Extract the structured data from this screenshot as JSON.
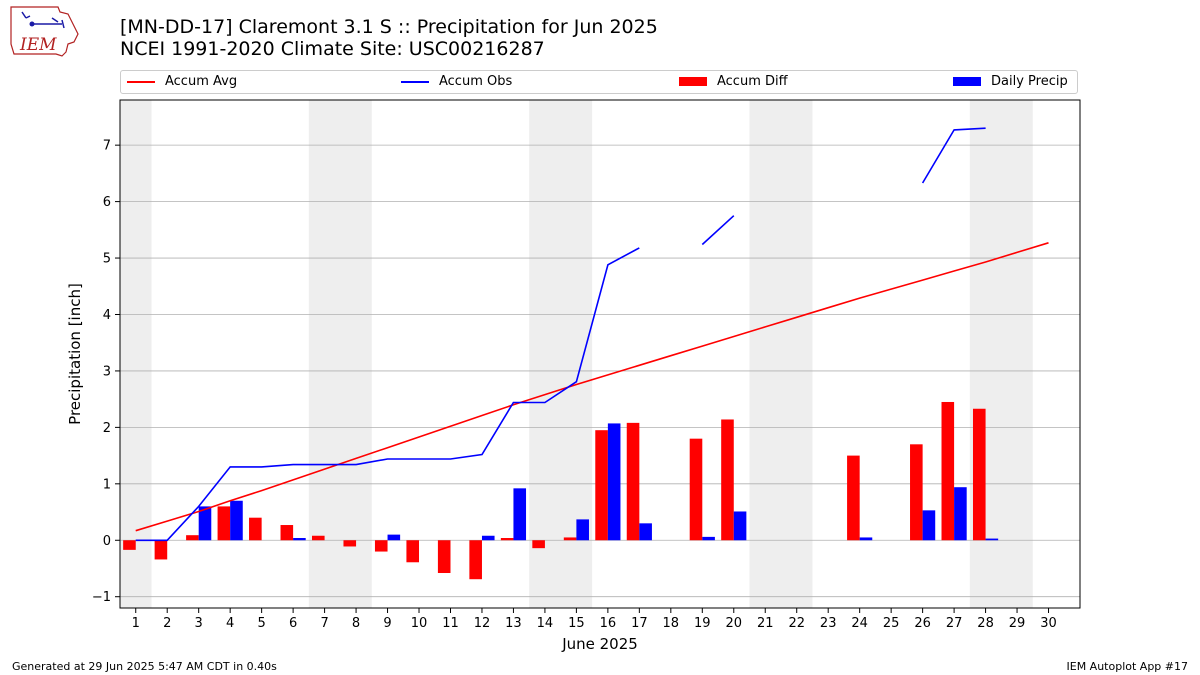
{
  "header": {
    "title_line1": "[MN-DD-17] Claremont 3.1 S :: Precipitation for Jun 2025",
    "title_line2": "NCEI 1991-2020 Climate Site: USC00216287",
    "logo_text": "IEM"
  },
  "footer": {
    "generated": "Generated at 29 Jun 2025 5:47 AM CDT in 0.40s",
    "app": "IEM Autoplot App #17"
  },
  "colors": {
    "avg": "#ff0000",
    "obs": "#0000ff",
    "diff": "#ff0000",
    "daily": "#0000ff",
    "weekend": "#eeeeee",
    "grid": "#b0b0b0"
  },
  "chart_data": {
    "type": "bar",
    "title": "[MN-DD-17] Claremont 3.1 S :: Precipitation for Jun 2025",
    "subtitle": "NCEI 1991-2020 Climate Site: USC00216287",
    "xlabel": "June 2025",
    "ylabel": "Precipitation [inch]",
    "xlim": [
      0.5,
      31
    ],
    "ylim": [
      -1.2,
      7.8
    ],
    "yticks": [
      -1,
      0,
      1,
      2,
      3,
      4,
      5,
      6,
      7
    ],
    "grid": "horizontal",
    "legend_placement": "top",
    "days": [
      1,
      2,
      3,
      4,
      5,
      6,
      7,
      8,
      9,
      10,
      11,
      12,
      13,
      14,
      15,
      16,
      17,
      18,
      19,
      20,
      21,
      22,
      23,
      24,
      25,
      26,
      27,
      28,
      29,
      30
    ],
    "weekend_spans": [
      [
        0.5,
        1.5
      ],
      [
        6.5,
        8.5
      ],
      [
        13.5,
        15.5
      ],
      [
        20.5,
        22.5
      ],
      [
        27.5,
        29.5
      ]
    ],
    "series": [
      {
        "name": "Accum Avg",
        "kind": "line",
        "x": [
          1,
          2,
          3,
          4,
          5,
          6,
          7,
          8,
          9,
          10,
          11,
          12,
          13,
          14,
          15,
          16,
          17,
          18,
          19,
          20,
          21,
          22,
          23,
          24,
          25,
          26,
          27,
          28,
          29,
          30
        ],
        "values": [
          0.17,
          0.34,
          0.51,
          0.7,
          0.88,
          1.07,
          1.26,
          1.45,
          1.64,
          1.83,
          2.02,
          2.21,
          2.4,
          2.58,
          2.76,
          2.93,
          3.1,
          3.27,
          3.44,
          3.61,
          3.78,
          3.95,
          4.12,
          4.29,
          4.45,
          4.61,
          4.77,
          4.93,
          5.1,
          5.27
        ]
      },
      {
        "name": "Accum Obs",
        "kind": "line",
        "x": [
          1,
          2,
          3,
          4,
          5,
          6,
          7,
          8,
          9,
          10,
          11,
          12,
          13,
          14,
          15,
          16,
          17,
          18,
          19,
          20,
          21,
          22,
          23,
          24,
          25,
          26,
          27,
          28,
          29,
          30
        ],
        "values": [
          0.0,
          0.0,
          0.6,
          1.3,
          1.3,
          1.34,
          1.34,
          1.34,
          1.44,
          1.44,
          1.44,
          1.52,
          2.44,
          2.44,
          2.81,
          4.88,
          5.18,
          null,
          5.24,
          5.75,
          null,
          null,
          null,
          null,
          null,
          6.33,
          7.27,
          7.3,
          null,
          null
        ]
      },
      {
        "name": "Accum Diff",
        "kind": "bar",
        "x": [
          1,
          2,
          3,
          4,
          5,
          6,
          7,
          8,
          9,
          10,
          11,
          12,
          13,
          14,
          15,
          16,
          17,
          18,
          19,
          20,
          21,
          22,
          23,
          24,
          25,
          26,
          27,
          28,
          29,
          30
        ],
        "values": [
          -0.17,
          -0.34,
          0.09,
          0.6,
          0.4,
          0.27,
          0.08,
          -0.11,
          -0.2,
          -0.39,
          -0.58,
          -0.69,
          0.04,
          -0.14,
          0.05,
          1.95,
          2.08,
          null,
          1.8,
          2.14,
          null,
          null,
          null,
          1.5,
          null,
          1.7,
          2.45,
          2.33,
          null,
          null
        ]
      },
      {
        "name": "Daily Precip",
        "kind": "bar",
        "x": [
          1,
          2,
          3,
          4,
          5,
          6,
          7,
          8,
          9,
          10,
          11,
          12,
          13,
          14,
          15,
          16,
          17,
          18,
          19,
          20,
          21,
          22,
          23,
          24,
          25,
          26,
          27,
          28,
          29,
          30
        ],
        "values": [
          0.0,
          0.0,
          0.6,
          0.7,
          0.0,
          0.04,
          0.0,
          0.0,
          0.1,
          0.0,
          0.0,
          0.08,
          0.92,
          0.0,
          0.37,
          2.07,
          0.3,
          null,
          0.06,
          0.51,
          null,
          null,
          null,
          0.05,
          null,
          0.53,
          0.94,
          0.03,
          null,
          null
        ]
      }
    ]
  }
}
